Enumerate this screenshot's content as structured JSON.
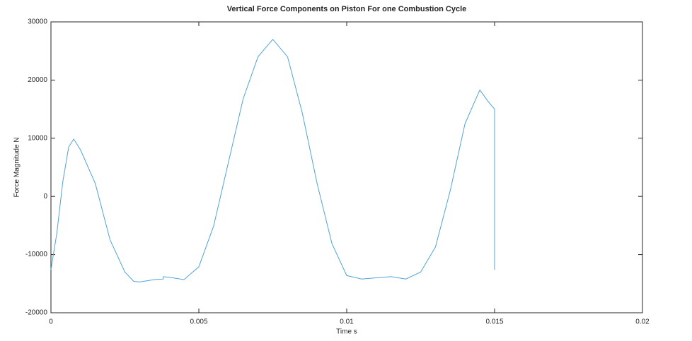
{
  "chart_data": {
    "type": "line",
    "title": "Vertical Force Components on Piston For one Combustion Cycle",
    "x_label": "Time s",
    "y_label": "Force Magnitude N",
    "x": [
      0,
      0.0002,
      0.0004,
      0.0006,
      0.00077,
      0.001,
      0.0015,
      0.002,
      0.0025,
      0.0028,
      0.003,
      0.0035,
      0.0038,
      0.0038,
      0.004,
      0.0045,
      0.005,
      0.0055,
      0.006,
      0.0065,
      0.007,
      0.0075,
      0.008,
      0.0085,
      0.009,
      0.0095,
      0.01,
      0.0105,
      0.011,
      0.0115,
      0.012,
      0.0125,
      0.013,
      0.0135,
      0.014,
      0.0145,
      0.0148,
      0.015,
      0.015
    ],
    "series": [
      {
        "color": "#4fa3d9",
        "values": [
          -12600,
          -6300,
          2500,
          8500,
          9850,
          8000,
          2200,
          -7500,
          -13000,
          -14600,
          -14700,
          -14300,
          -14200,
          -13800,
          -13900,
          -14300,
          -12100,
          -5100,
          5850,
          16800,
          24000,
          27000,
          24000,
          14300,
          2200,
          -8100,
          -13600,
          -14200,
          -14000,
          -13800,
          -14200,
          -13000,
          -8700,
          1000,
          12500,
          18300,
          16200,
          15000,
          -12600
        ]
      }
    ],
    "xlim": [
      0,
      0.02
    ],
    "xticks": [
      0,
      0.005,
      0.01,
      0.015,
      0.02
    ],
    "ylim": [
      -20000,
      30000
    ],
    "yticks": [
      -20000,
      -10000,
      0,
      10000,
      20000,
      30000
    ],
    "grid": false
  }
}
